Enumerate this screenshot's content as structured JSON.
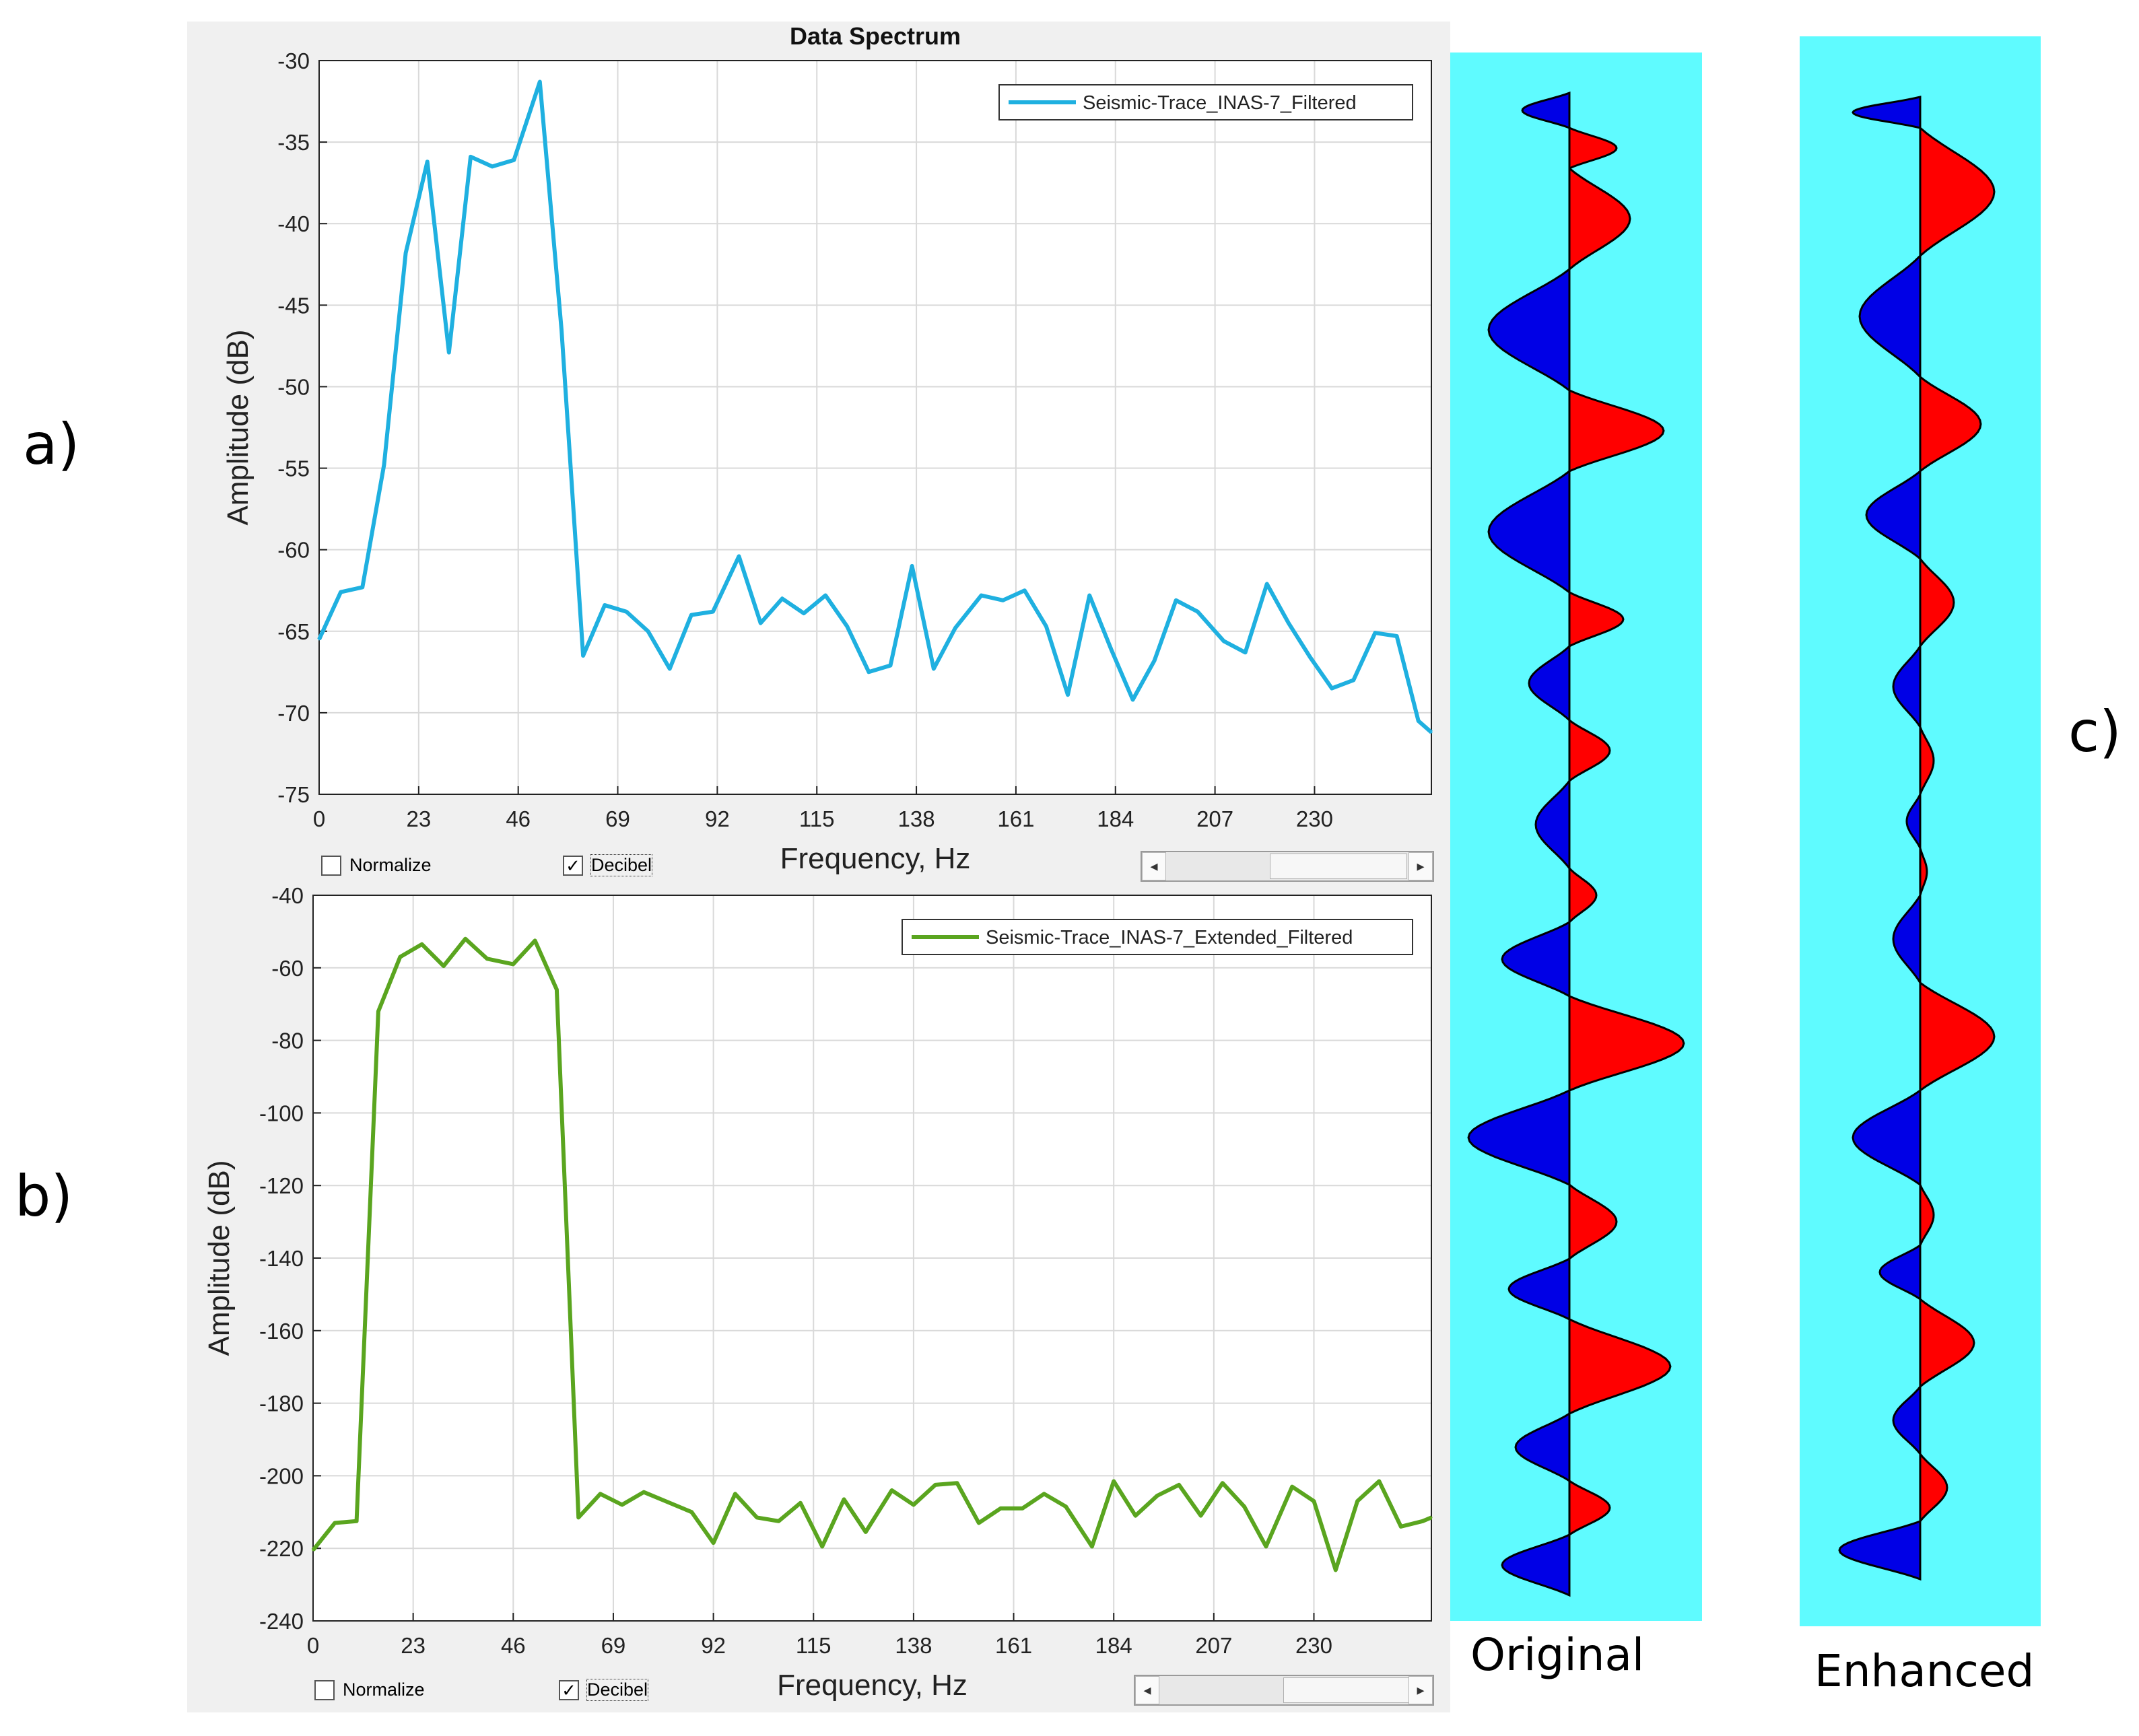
{
  "labels": {
    "a": "a)",
    "b": "b)",
    "c": "c)",
    "original": "Original",
    "enhanced": "Enhanced"
  },
  "colors": {
    "blue_series": "#1fb0e0",
    "green_series": "#5aa51f",
    "trace_bg": "#5ffbff",
    "positive": "#ff0000",
    "negative": "#0000e6"
  },
  "controls": {
    "normalize_label": "Normalize",
    "decibel_label": "Decibel",
    "normalize_checked": false,
    "decibel_checked": true
  },
  "chart_data": [
    {
      "type": "line",
      "title": "Data Spectrum",
      "xlabel": "Frequency, Hz",
      "ylabel": "Amplitude (dB)",
      "xlim": [
        0,
        257
      ],
      "ylim": [
        -75,
        -30
      ],
      "xticks": [
        0,
        23,
        46,
        69,
        92,
        115,
        138,
        161,
        184,
        207,
        230
      ],
      "yticks": [
        -30,
        -35,
        -40,
        -45,
        -50,
        -55,
        -60,
        -65,
        -70,
        -75
      ],
      "legend": "top-right",
      "series": [
        {
          "name": "Seismic-Trace_INAS-7_Filtered",
          "x": [
            0,
            5,
            10,
            15,
            20,
            25,
            30,
            35,
            40,
            45,
            51,
            56,
            61,
            66,
            71,
            76,
            81,
            86,
            91,
            97,
            102,
            107,
            112,
            117,
            122,
            127,
            132,
            137,
            142,
            147,
            153,
            158,
            163,
            168,
            173,
            178,
            183,
            188,
            193,
            198,
            203,
            209,
            214,
            219,
            224,
            229,
            234,
            239,
            244,
            249,
            254,
            257
          ],
          "values": [
            -65.5,
            -62.6,
            -62.3,
            -54.8,
            -41.8,
            -36.2,
            -47.9,
            -35.9,
            -36.5,
            -36.1,
            -31.3,
            -46.5,
            -66.5,
            -63.4,
            -63.8,
            -65,
            -67.3,
            -64,
            -63.8,
            -60.4,
            -64.5,
            -63,
            -63.9,
            -62.8,
            -64.7,
            -67.5,
            -67.1,
            -61,
            -67.3,
            -64.8,
            -62.8,
            -63.1,
            -62.5,
            -64.7,
            -68.9,
            -62.8,
            -66.1,
            -69.2,
            -66.8,
            -63.1,
            -63.8,
            -65.6,
            -66.3,
            -62.1,
            -64.5,
            -66.6,
            -68.5,
            -68,
            -65.1,
            -65.3,
            -70.5,
            -71.2
          ]
        }
      ]
    },
    {
      "type": "line",
      "title": "",
      "xlabel": "Frequency, Hz",
      "ylabel": "Amplitude (dB)",
      "xlim": [
        0,
        257
      ],
      "ylim": [
        -240,
        -40
      ],
      "xticks": [
        0,
        23,
        46,
        69,
        92,
        115,
        138,
        161,
        184,
        207,
        230
      ],
      "yticks": [
        -40,
        -60,
        -80,
        -100,
        -120,
        -140,
        -160,
        -180,
        -200,
        -220,
        -240
      ],
      "legend": "top-right",
      "series": [
        {
          "name": "Seismic-Trace_INAS-7_Extended_Filtered",
          "x": [
            0,
            5,
            10,
            15,
            20,
            25,
            30,
            35,
            40,
            46,
            51,
            56,
            61,
            66,
            71,
            76,
            81,
            87,
            92,
            97,
            102,
            107,
            112,
            117,
            122,
            127,
            133,
            138,
            143,
            148,
            153,
            158,
            163,
            168,
            173,
            179,
            184,
            189,
            194,
            199,
            204,
            209,
            214,
            219,
            225,
            230,
            235,
            240,
            245,
            250,
            255,
            257
          ],
          "values": [
            -220.5,
            -213,
            -212.5,
            -72,
            -57,
            -53.5,
            -59.5,
            -52,
            -57.5,
            -59,
            -52.5,
            -66,
            -211.5,
            -205,
            -208,
            -204.5,
            -207,
            -210,
            -218.5,
            -205,
            -211.5,
            -212.5,
            -207.5,
            -219.5,
            -206.5,
            -215.5,
            -204,
            -208,
            -202.5,
            -202,
            -213,
            -209,
            -209,
            -205,
            -208.5,
            -219.5,
            -201.5,
            -211,
            -205.5,
            -202.5,
            -211,
            -202,
            -208.5,
            -219.5,
            -203,
            -207,
            -226,
            -207,
            -201.5,
            -214,
            -212.5,
            -211.5
          ]
        }
      ]
    }
  ]
}
